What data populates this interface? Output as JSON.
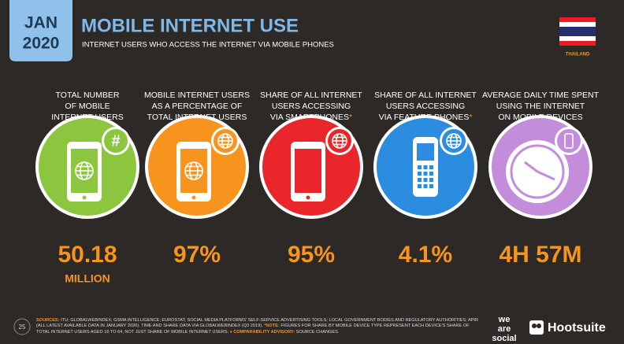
{
  "header": {
    "month": "JAN",
    "year": "2020",
    "title": "MOBILE INTERNET USE",
    "subtitle": "INTERNET USERS WHO ACCESS THE INTERNET VIA MOBILE PHONES",
    "country": "THAILAND"
  },
  "columns": [
    {
      "label_lines": [
        "TOTAL NUMBER",
        "OF MOBILE",
        "INTERNET USERS"
      ],
      "badge_text": "#",
      "value": "50.18",
      "unit": "MILLION",
      "color": "#8cc63f"
    },
    {
      "label_lines": [
        "MOBILE INTERNET USERS",
        "AS A PERCENTAGE OF",
        "TOTAL INTERNET USERS"
      ],
      "value": "97%",
      "color": "#f7941d"
    },
    {
      "label_lines": [
        "SHARE OF ALL INTERNET",
        "USERS ACCESSING",
        "VIA SMARTPHONES"
      ],
      "note_mark": "*",
      "value": "95%",
      "color": "#e8262b"
    },
    {
      "label_lines": [
        "SHARE OF ALL INTERNET",
        "USERS ACCESSING",
        "VIA FEATURE PHONES"
      ],
      "note_mark": "*",
      "value": "4.1%",
      "color": "#2b8ce0"
    },
    {
      "label_lines": [
        "AVERAGE DAILY TIME SPENT",
        "USING THE INTERNET",
        "ON MOBILE DEVICES"
      ],
      "value": "4H 57M",
      "color": "#c38ddb"
    }
  ],
  "footer": {
    "page": "25",
    "sources_label": "SOURCES:",
    "sources_text": "ITU; GLOBALWEBINDEX; GSMA INTELLIGENCE; EUROSTAT; SOCIAL MEDIA PLATFORMS' SELF-SERVICE ADVERTISING TOOLS; LOCAL GOVERNMENT BODIES AND REGULATORY AUTHORITIES; APIR (ALL LATEST AVAILABLE DATA IN JANUARY 2020). TIME AND SHARE DATA VIA GLOBALWEBINDEX (Q3 2019).",
    "note_label": "*NOTE:",
    "note_text": "FIGURES FOR SHARE BY MOBILE DEVICE TYPE REPRESENT EACH DEVICE'S SHARE OF TOTAL INTERNET USERS AGED 16 TO 64, NOT JUST SHARE OF MOBILE INTERNET USERS.",
    "advisory_label": "♦ COMPARABILITY ADVISORY:",
    "advisory_text": "SOURCE CHANGES.",
    "brand_lines": [
      "we",
      "are",
      "social"
    ],
    "hootsuite": "Hootsuite"
  }
}
